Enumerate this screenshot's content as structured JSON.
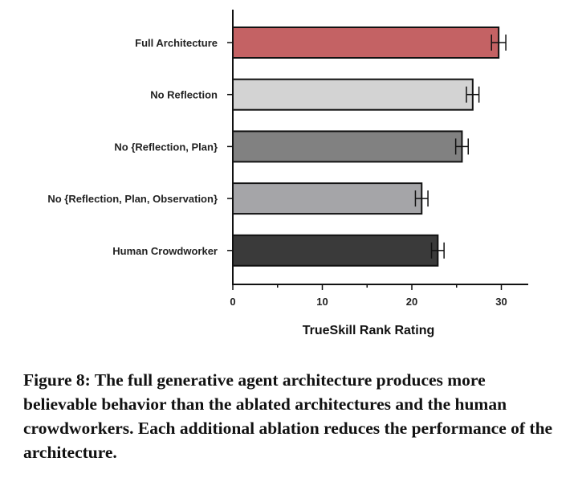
{
  "caption": "Figure 8: The full generative agent architecture produces more believable behavior than the ablated architectures and the human crowdworkers. Each additional ablation reduces the performance of the architecture.",
  "chart_data": {
    "type": "bar",
    "orientation": "horizontal",
    "categories": [
      "Full Architecture",
      "No Reflection",
      "No {Reflection, Plan}",
      "No {Reflection, Plan, Observation}",
      "Human Crowdworker"
    ],
    "values": [
      29.7,
      26.8,
      25.6,
      21.1,
      22.9
    ],
    "errors": [
      0.8,
      0.7,
      0.7,
      0.7,
      0.7
    ],
    "colors": [
      "#c46264",
      "#d3d3d3",
      "#818181",
      "#a5a5a8",
      "#3a3a3a"
    ],
    "xlabel": "TrueSkill Rank Rating",
    "ylabel": "",
    "xlim": [
      0,
      33
    ],
    "xticks": [
      0,
      10,
      20,
      30
    ],
    "grid": false,
    "legend": "none"
  }
}
